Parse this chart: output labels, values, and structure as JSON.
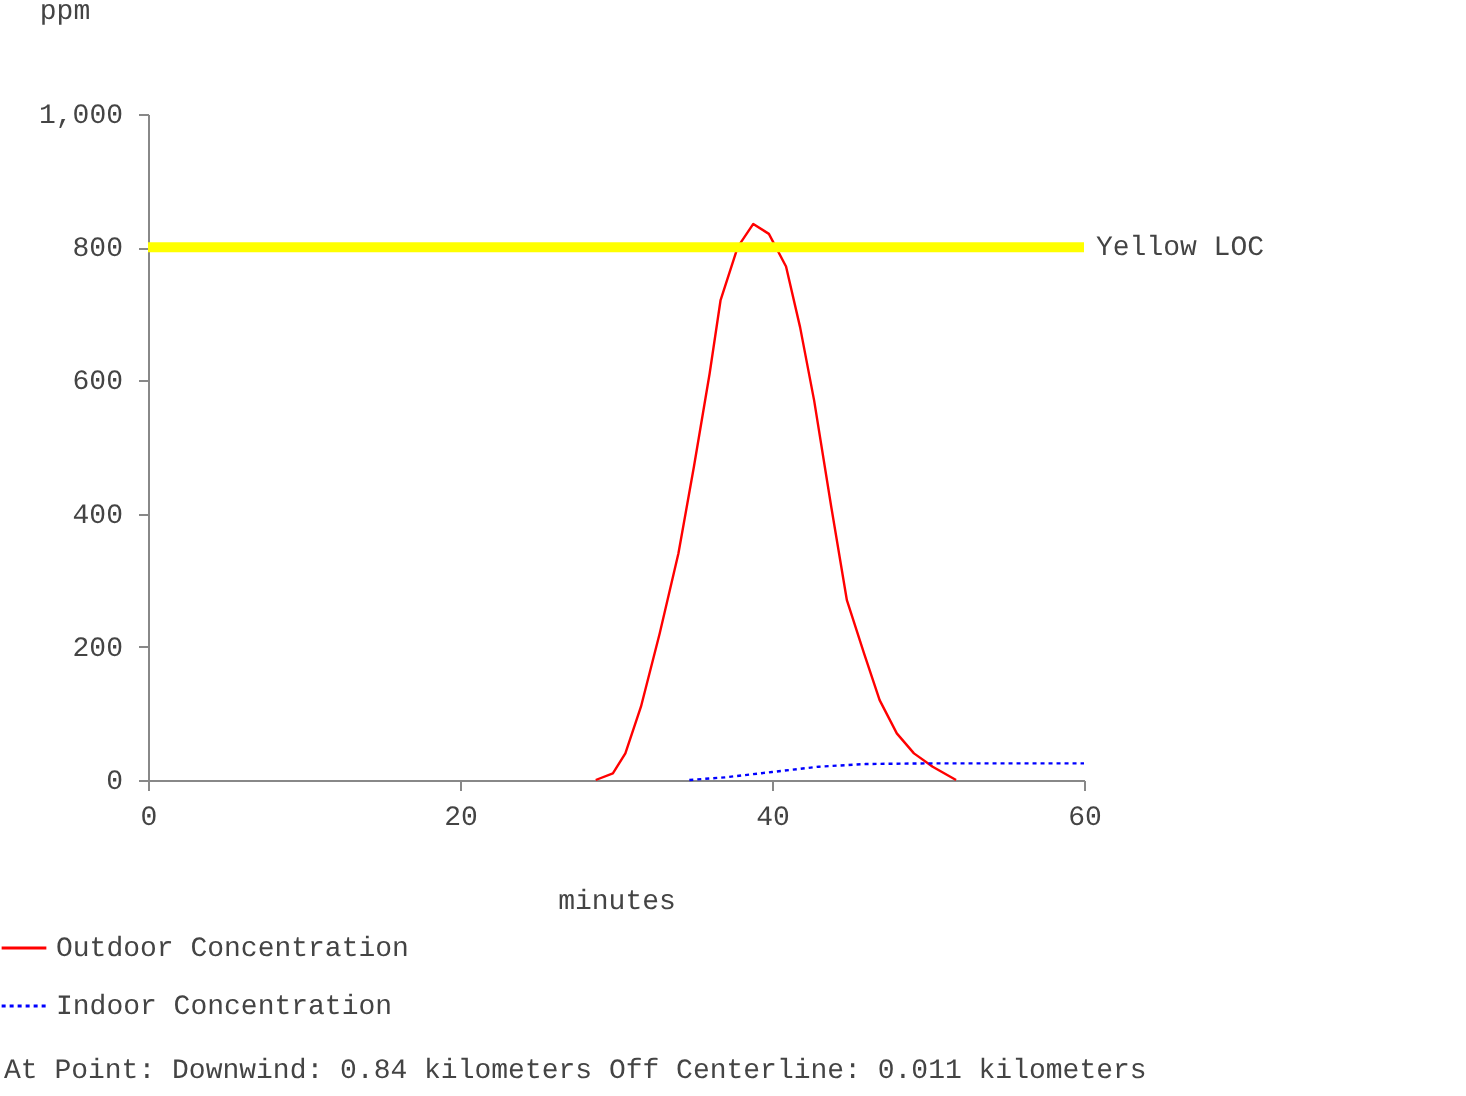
{
  "chart_data": {
    "type": "line",
    "xlabel": "minutes",
    "ylabel": "ppm",
    "xlim": [
      0,
      60
    ],
    "xticks": [
      0,
      20,
      40,
      60
    ],
    "ylim": [
      0,
      1000
    ],
    "yticks": [
      0,
      200,
      400,
      600,
      800,
      {
        "value": 1000,
        "label": "1,000"
      }
    ],
    "series": [
      {
        "name": "Outdoor Concentration",
        "color": "#ff0000",
        "line_style": "solid",
        "x": [
          28.7,
          29.8,
          30.6,
          31.6,
          32.8,
          34.0,
          35.0,
          36.0,
          36.7,
          37.8,
          38.8,
          39.8,
          40.9,
          41.8,
          42.7,
          43.8,
          44.8,
          45.9,
          46.9,
          48.0,
          49.1,
          50.3,
          51.8
        ],
        "values": [
          0,
          10,
          40,
          110,
          220,
          340,
          471,
          610,
          720,
          800,
          835,
          820,
          771,
          680,
          570,
          410,
          270,
          190,
          120,
          70,
          40,
          20,
          0
        ]
      },
      {
        "name": "Indoor Concentration",
        "color": "#0000ff",
        "line_style": "dotted",
        "x": [
          34.7,
          37,
          40,
          43,
          46,
          50,
          55,
          60
        ],
        "values": [
          0,
          4,
          12,
          20,
          24,
          25,
          25,
          25
        ]
      }
    ],
    "ref_lines": [
      {
        "axis": "y",
        "value": 800,
        "label": "Yellow LOC",
        "color": "#ffff00",
        "line_style": "solid"
      }
    ],
    "annotations": [
      "At Point:   Downwind: 0.84 kilometers   Off Centerline: 0.011 kilometers"
    ],
    "legend": "bottom",
    "grid": false,
    "marker": "none"
  }
}
